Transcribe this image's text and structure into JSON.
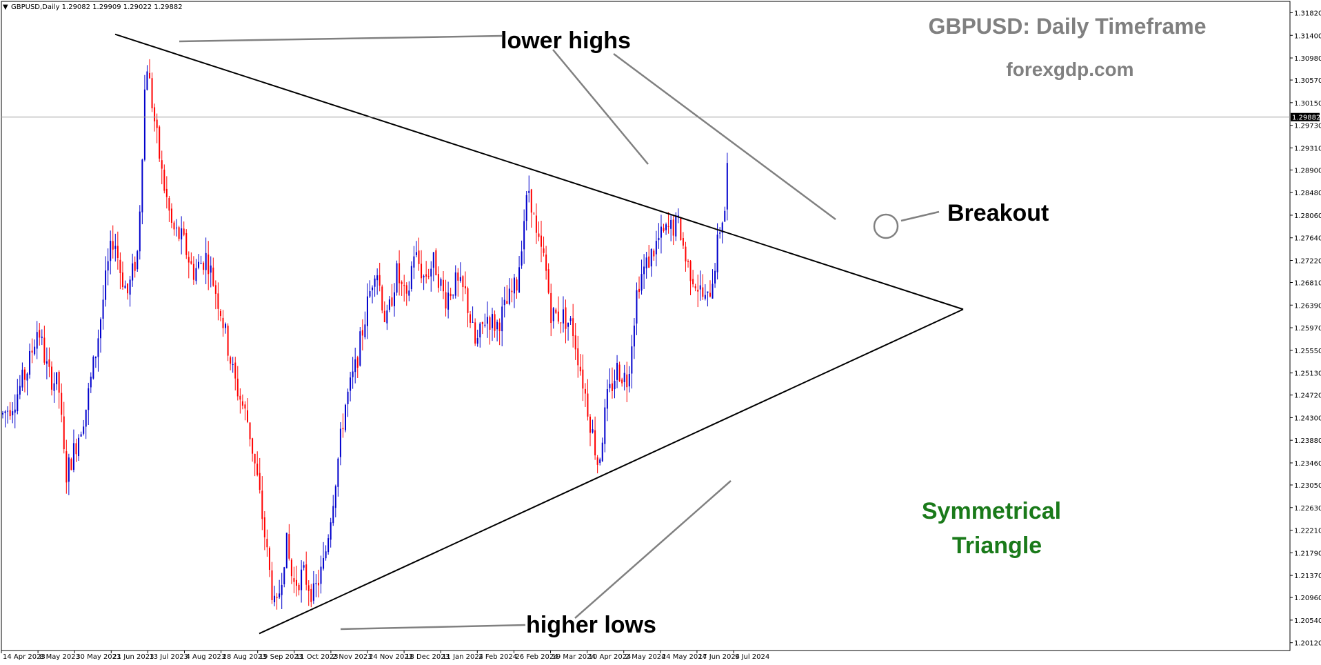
{
  "chart_data": {
    "type": "candlestick",
    "symbol_info": "GBPUSD,Daily  1.29082 1.29909 1.29022 1.29882",
    "ylim": [
      1.19975,
      1.32031
    ],
    "y_ticks": [
      "1.31820",
      "1.31400",
      "1.30980",
      "1.30570",
      "1.30150",
      "1.29730",
      "1.29310",
      "1.28900",
      "1.28480",
      "1.28060",
      "1.27640",
      "1.27220",
      "1.26810",
      "1.26390",
      "1.25970",
      "1.25550",
      "1.25130",
      "1.24720",
      "1.24300",
      "1.23880",
      "1.23460",
      "1.23050",
      "1.22630",
      "1.22210",
      "1.21790",
      "1.21370",
      "1.20960",
      "1.20540",
      "1.20120"
    ],
    "x_ticks": [
      "14 Apr 2023",
      "8 May 2023",
      "30 May 2023",
      "21 Jun 2023",
      "13 Jul 2023",
      "4 Aug 2023",
      "28 Aug 2023",
      "19 Sep 2023",
      "11 Oct 2023",
      "2 Nov 2023",
      "24 Nov 2023",
      "18 Dec 2023",
      "11 Jan 2024",
      "2 Feb 2024",
      "26 Feb 2024",
      "19 Mar 2024",
      "10 Apr 2024",
      "2 May 2024",
      "24 May 2024",
      "17 Jun 2024",
      "9 Jul 2024"
    ],
    "current_price": "1.29882",
    "up_color": "#0000cc",
    "down_color": "#ff0000",
    "price_path": [
      [
        0,
        1.243
      ],
      [
        20,
        1.246
      ],
      [
        40,
        1.252
      ],
      [
        55,
        1.26
      ],
      [
        70,
        1.251
      ],
      [
        85,
        1.249
      ],
      [
        95,
        1.232
      ],
      [
        110,
        1.238
      ],
      [
        125,
        1.245
      ],
      [
        140,
        1.256
      ],
      [
        155,
        1.27
      ],
      [
        165,
        1.277
      ],
      [
        175,
        1.27
      ],
      [
        185,
        1.266
      ],
      [
        200,
        1.274
      ],
      [
        212,
        1.31
      ],
      [
        222,
        1.3
      ],
      [
        235,
        1.288
      ],
      [
        250,
        1.278
      ],
      [
        265,
        1.276
      ],
      [
        280,
        1.27
      ],
      [
        300,
        1.273
      ],
      [
        320,
        1.263
      ],
      [
        340,
        1.25
      ],
      [
        360,
        1.242
      ],
      [
        375,
        1.23
      ],
      [
        390,
        1.215
      ],
      [
        400,
        1.206
      ],
      [
        415,
        1.22
      ],
      [
        425,
        1.212
      ],
      [
        440,
        1.214
      ],
      [
        455,
        1.21
      ],
      [
        470,
        1.216
      ],
      [
        485,
        1.23
      ],
      [
        500,
        1.245
      ],
      [
        515,
        1.252
      ],
      [
        530,
        1.262
      ],
      [
        545,
        1.272
      ],
      [
        560,
        1.26
      ],
      [
        575,
        1.27
      ],
      [
        590,
        1.264
      ],
      [
        600,
        1.274
      ],
      [
        615,
        1.269
      ],
      [
        630,
        1.272
      ],
      [
        645,
        1.265
      ],
      [
        660,
        1.268
      ],
      [
        675,
        1.266
      ],
      [
        690,
        1.256
      ],
      [
        705,
        1.262
      ],
      [
        720,
        1.26
      ],
      [
        735,
        1.264
      ],
      [
        750,
        1.268
      ],
      [
        760,
        1.28
      ],
      [
        768,
        1.286
      ],
      [
        778,
        1.276
      ],
      [
        790,
        1.272
      ],
      [
        800,
        1.262
      ],
      [
        815,
        1.262
      ],
      [
        830,
        1.26
      ],
      [
        845,
        1.25
      ],
      [
        858,
        1.241
      ],
      [
        868,
        1.234
      ],
      [
        880,
        1.246
      ],
      [
        895,
        1.252
      ],
      [
        910,
        1.25
      ],
      [
        925,
        1.268
      ],
      [
        940,
        1.272
      ],
      [
        955,
        1.276
      ],
      [
        970,
        1.278
      ],
      [
        985,
        1.279
      ],
      [
        995,
        1.272
      ],
      [
        1010,
        1.268
      ],
      [
        1025,
        1.264
      ],
      [
        1035,
        1.27
      ],
      [
        1045,
        1.279
      ],
      [
        1052,
        1.282
      ],
      [
        1058,
        1.298
      ]
    ],
    "trendlines": [
      {
        "name": "upper",
        "from": [
          167,
          1.3142
        ],
        "to": [
          1397,
          1.26312
        ]
      },
      {
        "name": "lower",
        "from": [
          376,
          1.2029
        ],
        "to": [
          1397,
          1.26312
        ]
      }
    ]
  },
  "annotations": {
    "title": "GBPUSD: Daily Timeframe",
    "website": "forexgdp.com",
    "lower_highs": "lower highs",
    "higher_lows": "higher lows",
    "breakout": "Breakout",
    "pattern_line1": "Symmetrical",
    "pattern_line2": "Triangle",
    "title_color": "#808080",
    "pattern_color": "#1a7a1a"
  }
}
